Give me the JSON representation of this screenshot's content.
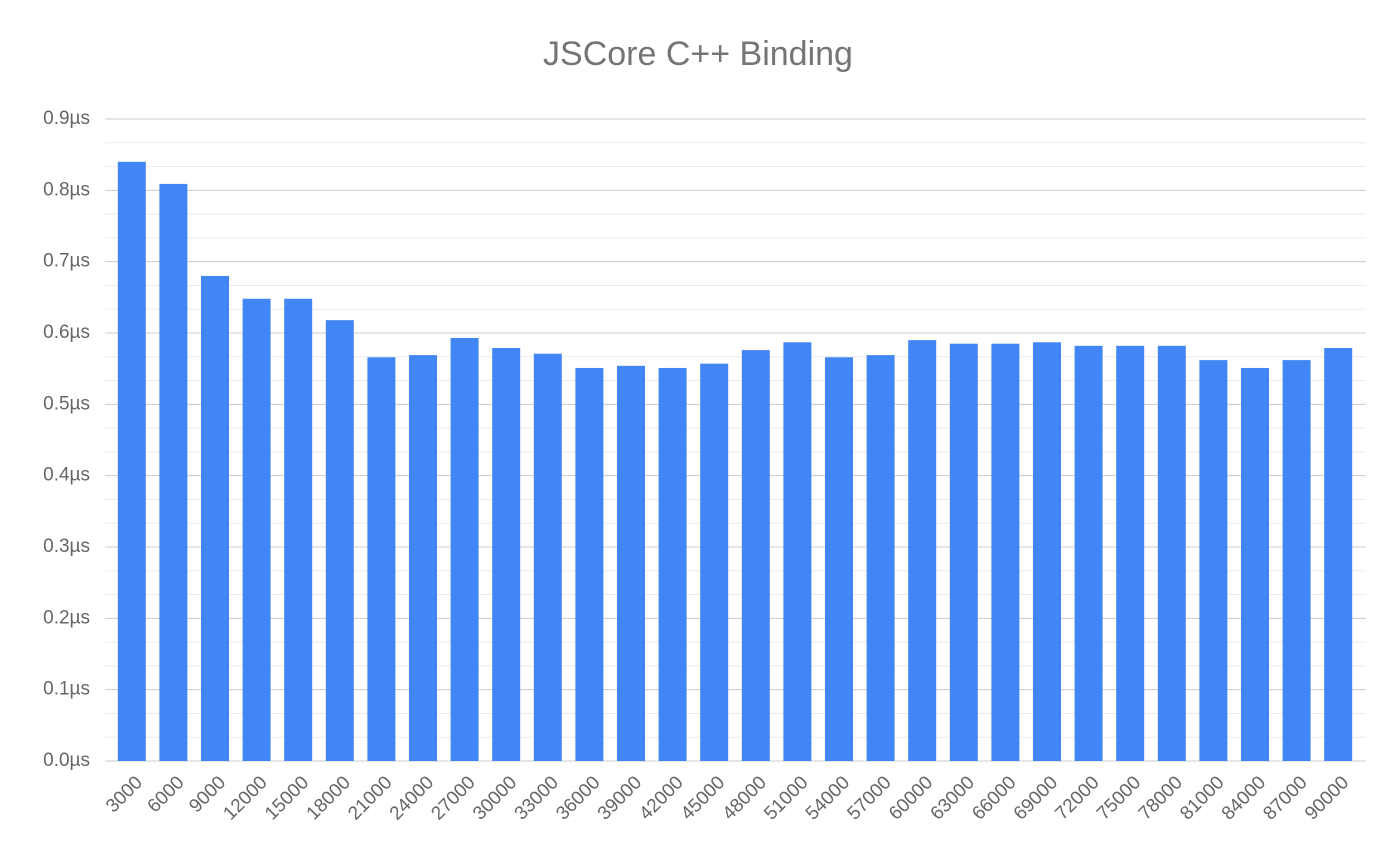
{
  "chart_data": {
    "type": "bar",
    "title": "JSCore C++ Binding",
    "categories": [
      "3000",
      "6000",
      "9000",
      "12000",
      "15000",
      "18000",
      "21000",
      "24000",
      "27000",
      "30000",
      "33000",
      "36000",
      "39000",
      "42000",
      "45000",
      "48000",
      "51000",
      "54000",
      "57000",
      "60000",
      "63000",
      "66000",
      "69000",
      "72000",
      "75000",
      "78000",
      "81000",
      "84000",
      "87000",
      "90000"
    ],
    "values": [
      0.84,
      0.809,
      0.68,
      0.648,
      0.648,
      0.618,
      0.566,
      0.569,
      0.593,
      0.579,
      0.571,
      0.551,
      0.554,
      0.551,
      0.557,
      0.576,
      0.587,
      0.566,
      0.569,
      0.59,
      0.585,
      0.585,
      0.587,
      0.582,
      0.582,
      0.582,
      0.562,
      0.551,
      0.562,
      0.579
    ],
    "color": "#4285f4",
    "ylim": [
      0,
      0.9
    ],
    "yticks": [
      {
        "value": 0,
        "label": "0.0µs"
      },
      {
        "value": 0.1,
        "label": "0.1µs"
      },
      {
        "value": 0.2,
        "label": "0.2µs"
      },
      {
        "value": 0.3,
        "label": "0.3µs"
      },
      {
        "value": 0.4,
        "label": "0.4µs"
      },
      {
        "value": 0.5,
        "label": "0.5µs"
      },
      {
        "value": 0.6,
        "label": "0.6µs"
      },
      {
        "value": 0.7,
        "label": "0.7µs"
      },
      {
        "value": 0.8,
        "label": "0.8µs"
      },
      {
        "value": 0.9,
        "label": "0.9µs"
      }
    ],
    "grid": true
  }
}
